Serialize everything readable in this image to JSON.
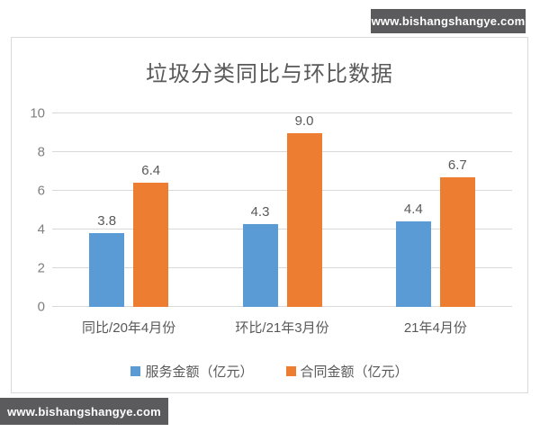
{
  "watermark_top": {
    "text": "www.bishangshangye.com"
  },
  "watermark_bottom": {
    "text": "www.bishangshangye.com"
  },
  "chart_data": {
    "type": "bar",
    "title": "垃圾分类同比与环比数据",
    "categories": [
      "同比/20年4月份",
      "环比/21年3月份",
      "21年4月份"
    ],
    "series": [
      {
        "name": "服务金额（亿元）",
        "color": "#5B9BD5",
        "values": [
          3.8,
          4.3,
          4.4
        ]
      },
      {
        "name": "合同金额（亿元）",
        "color": "#ED7D31",
        "values": [
          6.4,
          9.0,
          6.7
        ]
      }
    ],
    "xlabel": "",
    "ylabel": "",
    "ylim": [
      0,
      10
    ],
    "yticks": [
      0,
      2,
      4,
      6,
      8,
      10
    ],
    "grid": true,
    "legend_position": "bottom",
    "value_labels": true,
    "value_label_decimals": 1
  },
  "colors": {
    "watermark_bg": "#5b5b5d",
    "watermark_text": "#ffffff",
    "frame_border": "#d9d9d9",
    "gridline": "#d9d9d9",
    "title_text": "#595959",
    "tick_text": "#7f7f7f",
    "label_text": "#595959"
  }
}
